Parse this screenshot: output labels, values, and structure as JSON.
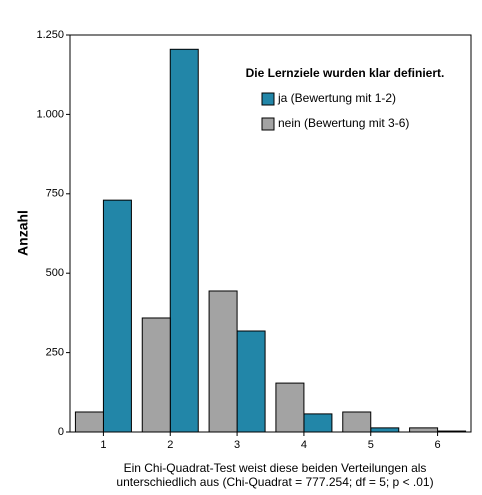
{
  "chart_data": {
    "type": "bar",
    "legend_title": "Die Lernziele wurden klar definiert.",
    "ylabel": "Anzahl",
    "xlabel": [
      "Ein Chi-Quadrat-Test weist diese beiden Verteilungen als",
      "unterschiedlich aus (Chi-Quadrat = 777.254; df = 5; p < .01)"
    ],
    "categories": [
      "1",
      "2",
      "3",
      "4",
      "5",
      "6"
    ],
    "series": [
      {
        "name": "ja (Bewertung mit 1-2)",
        "color": "#2286a8",
        "values": [
          730,
          1205,
          318,
          57,
          13,
          3
        ]
      },
      {
        "name": "nein (Bewertung mit 3-6)",
        "color": "#a3a3a3",
        "values": [
          63,
          359,
          444,
          154,
          63,
          13
        ]
      }
    ],
    "ylim": [
      0,
      1250
    ],
    "yticks": [
      0,
      250,
      500,
      750,
      {
        "value": 1000,
        "label": "1.000"
      },
      {
        "value": 1250,
        "label": "1.250"
      }
    ],
    "legend": "upper right"
  }
}
